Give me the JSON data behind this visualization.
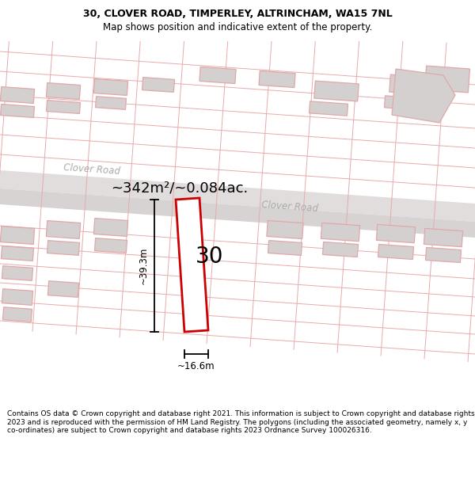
{
  "title_line1": "30, CLOVER ROAD, TIMPERLEY, ALTRINCHAM, WA15 7NL",
  "title_line2": "Map shows position and indicative extent of the property.",
  "footer_text": "Contains OS data © Crown copyright and database right 2021. This information is subject to Crown copyright and database rights 2023 and is reproduced with the permission of HM Land Registry. The polygons (including the associated geometry, namely x, y co-ordinates) are subject to Crown copyright and database rights 2023 Ordnance Survey 100026316.",
  "area_label": "~342m²/~0.084ac.",
  "width_label": "~16.6m",
  "height_label": "~39.3m",
  "property_number": "30",
  "road_label1": "Clover Road",
  "road_label2": "Clover Road",
  "map_bg": "#f2eeee",
  "road_fill": "#dedada",
  "road_edge": "#c8c0c0",
  "bld_fill": "#d4d0d0",
  "bld_edge": "#e0a8a8",
  "plot_line": "#e8aaaa",
  "prop_color": "#cc0000",
  "title_fs": 9.0,
  "subtitle_fs": 8.5,
  "footer_fs": 6.5,
  "road_label_color": "#aaaaaa",
  "area_label_fs": 13.0
}
